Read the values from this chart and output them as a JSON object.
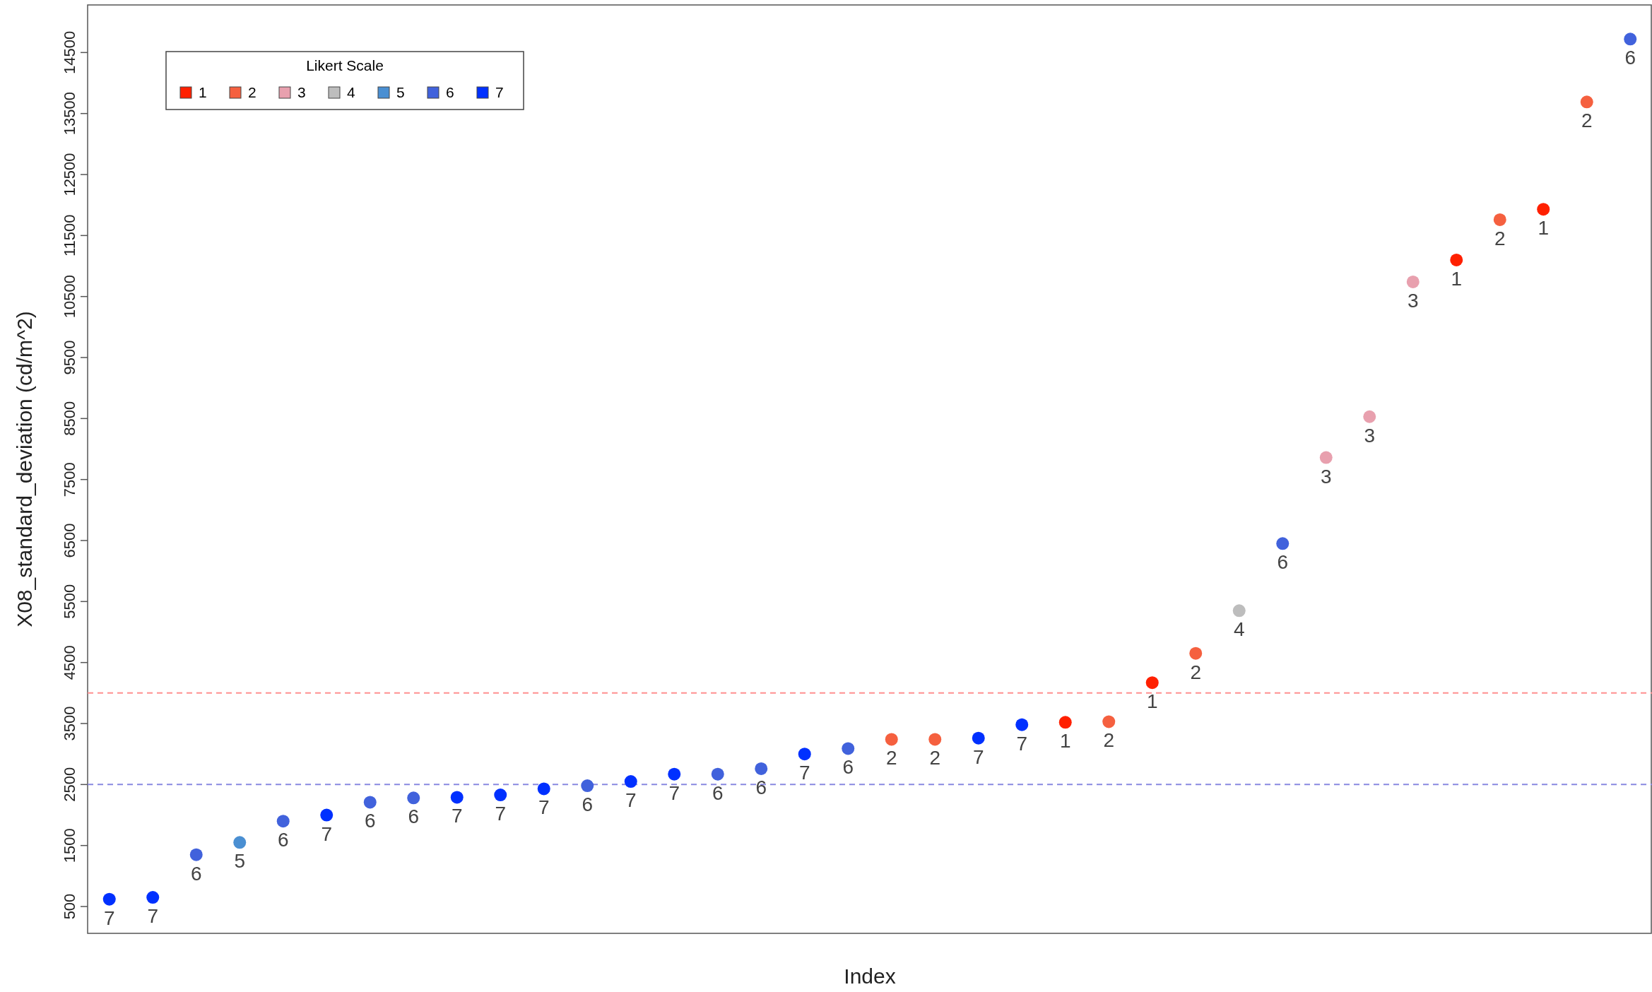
{
  "chart_data": {
    "type": "scatter",
    "xlabel": "Index",
    "ylabel": "X08_standard_deviation (cd/m^2)",
    "legend_title": "Likert Scale",
    "legend": "top left",
    "marker": "circle",
    "grid": false,
    "tick_labels": "y",
    "categories": [
      null,
      null,
      null,
      null,
      null,
      null,
      null,
      null,
      null,
      null,
      null,
      null,
      null,
      null,
      null,
      null,
      null,
      null,
      null,
      null,
      null,
      null,
      null,
      null,
      null,
      null,
      null,
      null,
      null,
      null,
      null,
      null,
      null,
      null,
      null,
      null
    ],
    "ylim": [
      60,
      15280
    ],
    "yticks": [
      500,
      1500,
      2500,
      3500,
      4500,
      5500,
      6500,
      7500,
      8500,
      9500,
      10500,
      11500,
      12500,
      13500,
      14500
    ],
    "ref_lines": [
      {
        "axis": "y",
        "value": 4000,
        "color": "#ff9090",
        "line_style": "dashed"
      },
      {
        "axis": "y",
        "value": 2500,
        "color": "#8888e0",
        "line_style": "dashed"
      }
    ],
    "series": [
      {
        "name": "1",
        "color": "#ff2000",
        "values": [
          null,
          null,
          null,
          null,
          null,
          null,
          null,
          null,
          null,
          null,
          null,
          null,
          null,
          null,
          null,
          null,
          null,
          null,
          null,
          null,
          null,
          null,
          3520,
          null,
          4170,
          null,
          null,
          null,
          null,
          null,
          null,
          11100,
          null,
          11930,
          null,
          null
        ]
      },
      {
        "name": "2",
        "color": "#f5603f",
        "values": [
          null,
          null,
          null,
          null,
          null,
          null,
          null,
          null,
          null,
          null,
          null,
          null,
          null,
          null,
          null,
          null,
          null,
          null,
          3240,
          3240,
          null,
          null,
          null,
          3530,
          null,
          4650,
          null,
          null,
          null,
          null,
          null,
          null,
          11760,
          null,
          13690,
          null
        ]
      },
      {
        "name": "3",
        "color": "#e8a0ae",
        "values": [
          null,
          null,
          null,
          null,
          null,
          null,
          null,
          null,
          null,
          null,
          null,
          null,
          null,
          null,
          null,
          null,
          null,
          null,
          null,
          null,
          null,
          null,
          null,
          null,
          null,
          null,
          null,
          null,
          7860,
          8530,
          10740,
          null,
          null,
          null,
          null,
          null
        ]
      },
      {
        "name": "4",
        "color": "#bdbdbd",
        "values": [
          null,
          null,
          null,
          null,
          null,
          null,
          null,
          null,
          null,
          null,
          null,
          null,
          null,
          null,
          null,
          null,
          null,
          null,
          null,
          null,
          null,
          null,
          null,
          null,
          null,
          null,
          5350,
          null,
          null,
          null,
          null,
          null,
          null,
          null,
          null,
          null
        ]
      },
      {
        "name": "5",
        "color": "#4a8fd2",
        "values": [
          null,
          null,
          null,
          1550,
          null,
          null,
          null,
          null,
          null,
          null,
          null,
          null,
          null,
          null,
          null,
          null,
          null,
          null,
          null,
          null,
          null,
          null,
          null,
          null,
          null,
          null,
          null,
          null,
          null,
          null,
          null,
          null,
          null,
          null,
          null,
          null
        ]
      },
      {
        "name": "6",
        "color": "#4162dc",
        "values": [
          null,
          null,
          1350,
          null,
          1900,
          null,
          2210,
          2280,
          null,
          null,
          null,
          2480,
          null,
          null,
          2670,
          2760,
          null,
          3090,
          null,
          null,
          null,
          null,
          null,
          null,
          null,
          null,
          null,
          6450,
          null,
          null,
          null,
          null,
          null,
          null,
          null,
          14720
        ]
      },
      {
        "name": "7",
        "color": "#0030ff",
        "values": [
          620,
          650,
          null,
          null,
          null,
          2000,
          null,
          null,
          2290,
          2330,
          2430,
          null,
          2550,
          2670,
          null,
          null,
          3000,
          null,
          null,
          null,
          3260,
          3480,
          null,
          null,
          null,
          null,
          null,
          null,
          null,
          null,
          null,
          null,
          null,
          null,
          null,
          null
        ]
      }
    ]
  }
}
